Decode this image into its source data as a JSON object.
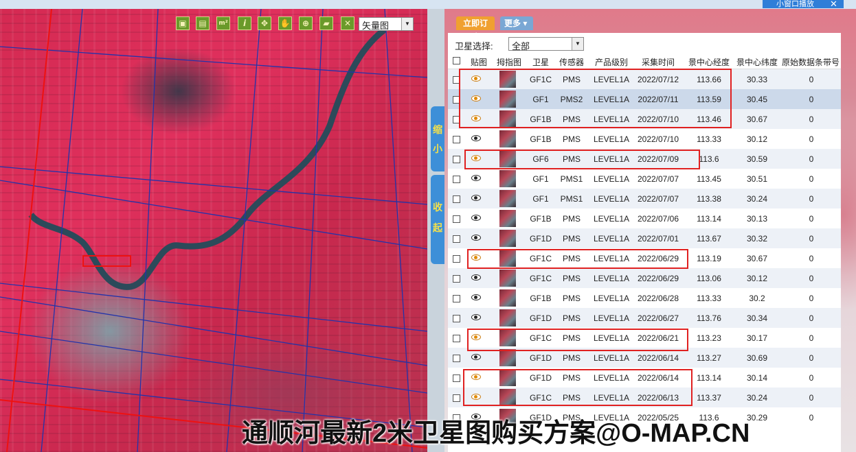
{
  "toolbar": {
    "tools": [
      {
        "name": "zoom-rect-tool",
        "glyph": "▣"
      },
      {
        "name": "ruler-tool",
        "glyph": "▤"
      },
      {
        "name": "area-measure-tool",
        "glyph": "m²"
      },
      {
        "name": "info-tool",
        "glyph": "i"
      },
      {
        "name": "full-extent-tool",
        "glyph": "✥"
      },
      {
        "name": "pan-tool",
        "glyph": "✋"
      },
      {
        "name": "globe-tool",
        "glyph": "⊕"
      },
      {
        "name": "polygon-tool",
        "glyph": "▰"
      },
      {
        "name": "clear-tool",
        "glyph": "✕"
      }
    ],
    "layer_value": "矢量图"
  },
  "side_tabs": {
    "shrink": [
      "缩",
      "小"
    ],
    "collapse": [
      "收",
      "起"
    ]
  },
  "popout_label": "小窗口播放",
  "panel": {
    "order_label": "立即订购",
    "more_label": "更多 ▾",
    "sat_filter_label": "卫星选择:",
    "sat_filter_value": "全部",
    "columns": [
      "贴图",
      "拇指图",
      "卫星",
      "传感器",
      "产品级别",
      "采集时间",
      "景中心经度",
      "景中心纬度",
      "原始数据条带号"
    ],
    "rows": [
      {
        "sat": "GF1C",
        "sensor": "PMS",
        "level": "LEVEL1A",
        "date": "2022/07/12",
        "lon": "113.66",
        "lat": "30.33",
        "strip": "0",
        "eye_on": true
      },
      {
        "sat": "GF1",
        "sensor": "PMS2",
        "level": "LEVEL1A",
        "date": "2022/07/11",
        "lon": "113.59",
        "lat": "30.45",
        "strip": "0",
        "eye_on": true
      },
      {
        "sat": "GF1B",
        "sensor": "PMS",
        "level": "LEVEL1A",
        "date": "2022/07/10",
        "lon": "113.46",
        "lat": "30.67",
        "strip": "0",
        "eye_on": true
      },
      {
        "sat": "GF1B",
        "sensor": "PMS",
        "level": "LEVEL1A",
        "date": "2022/07/10",
        "lon": "113.33",
        "lat": "30.12",
        "strip": "0",
        "eye_on": false
      },
      {
        "sat": "GF6",
        "sensor": "PMS",
        "level": "LEVEL1A",
        "date": "2022/07/09",
        "lon": "113.6",
        "lat": "30.59",
        "strip": "0",
        "eye_on": true
      },
      {
        "sat": "GF1",
        "sensor": "PMS1",
        "level": "LEVEL1A",
        "date": "2022/07/07",
        "lon": "113.45",
        "lat": "30.51",
        "strip": "0",
        "eye_on": false
      },
      {
        "sat": "GF1",
        "sensor": "PMS1",
        "level": "LEVEL1A",
        "date": "2022/07/07",
        "lon": "113.38",
        "lat": "30.24",
        "strip": "0",
        "eye_on": false
      },
      {
        "sat": "GF1B",
        "sensor": "PMS",
        "level": "LEVEL1A",
        "date": "2022/07/06",
        "lon": "113.14",
        "lat": "30.13",
        "strip": "0",
        "eye_on": false
      },
      {
        "sat": "GF1D",
        "sensor": "PMS",
        "level": "LEVEL1A",
        "date": "2022/07/01",
        "lon": "113.67",
        "lat": "30.32",
        "strip": "0",
        "eye_on": false
      },
      {
        "sat": "GF1C",
        "sensor": "PMS",
        "level": "LEVEL1A",
        "date": "2022/06/29",
        "lon": "113.19",
        "lat": "30.67",
        "strip": "0",
        "eye_on": true
      },
      {
        "sat": "GF1C",
        "sensor": "PMS",
        "level": "LEVEL1A",
        "date": "2022/06/29",
        "lon": "113.06",
        "lat": "30.12",
        "strip": "0",
        "eye_on": false
      },
      {
        "sat": "GF1B",
        "sensor": "PMS",
        "level": "LEVEL1A",
        "date": "2022/06/28",
        "lon": "113.33",
        "lat": "30.2",
        "strip": "0",
        "eye_on": false
      },
      {
        "sat": "GF1D",
        "sensor": "PMS",
        "level": "LEVEL1A",
        "date": "2022/06/27",
        "lon": "113.76",
        "lat": "30.34",
        "strip": "0",
        "eye_on": false
      },
      {
        "sat": "GF1C",
        "sensor": "PMS",
        "level": "LEVEL1A",
        "date": "2022/06/21",
        "lon": "113.23",
        "lat": "30.17",
        "strip": "0",
        "eye_on": true
      },
      {
        "sat": "GF1D",
        "sensor": "PMS",
        "level": "LEVEL1A",
        "date": "2022/06/14",
        "lon": "113.27",
        "lat": "30.69",
        "strip": "0",
        "eye_on": false
      },
      {
        "sat": "GF1D",
        "sensor": "PMS",
        "level": "LEVEL1A",
        "date": "2022/06/14",
        "lon": "113.14",
        "lat": "30.14",
        "strip": "0",
        "eye_on": true
      },
      {
        "sat": "GF1C",
        "sensor": "PMS",
        "level": "LEVEL1A",
        "date": "2022/06/13",
        "lon": "113.37",
        "lat": "30.24",
        "strip": "0",
        "eye_on": true
      },
      {
        "sat": "GF1D",
        "sensor": "PMS",
        "level": "LEVEL1A",
        "date": "2022/05/25",
        "lon": "113.6",
        "lat": "30.29",
        "strip": "0",
        "eye_on": false
      }
    ]
  },
  "watermark": "通顺河最新2米卫星图购买方案@O-MAP.CN"
}
